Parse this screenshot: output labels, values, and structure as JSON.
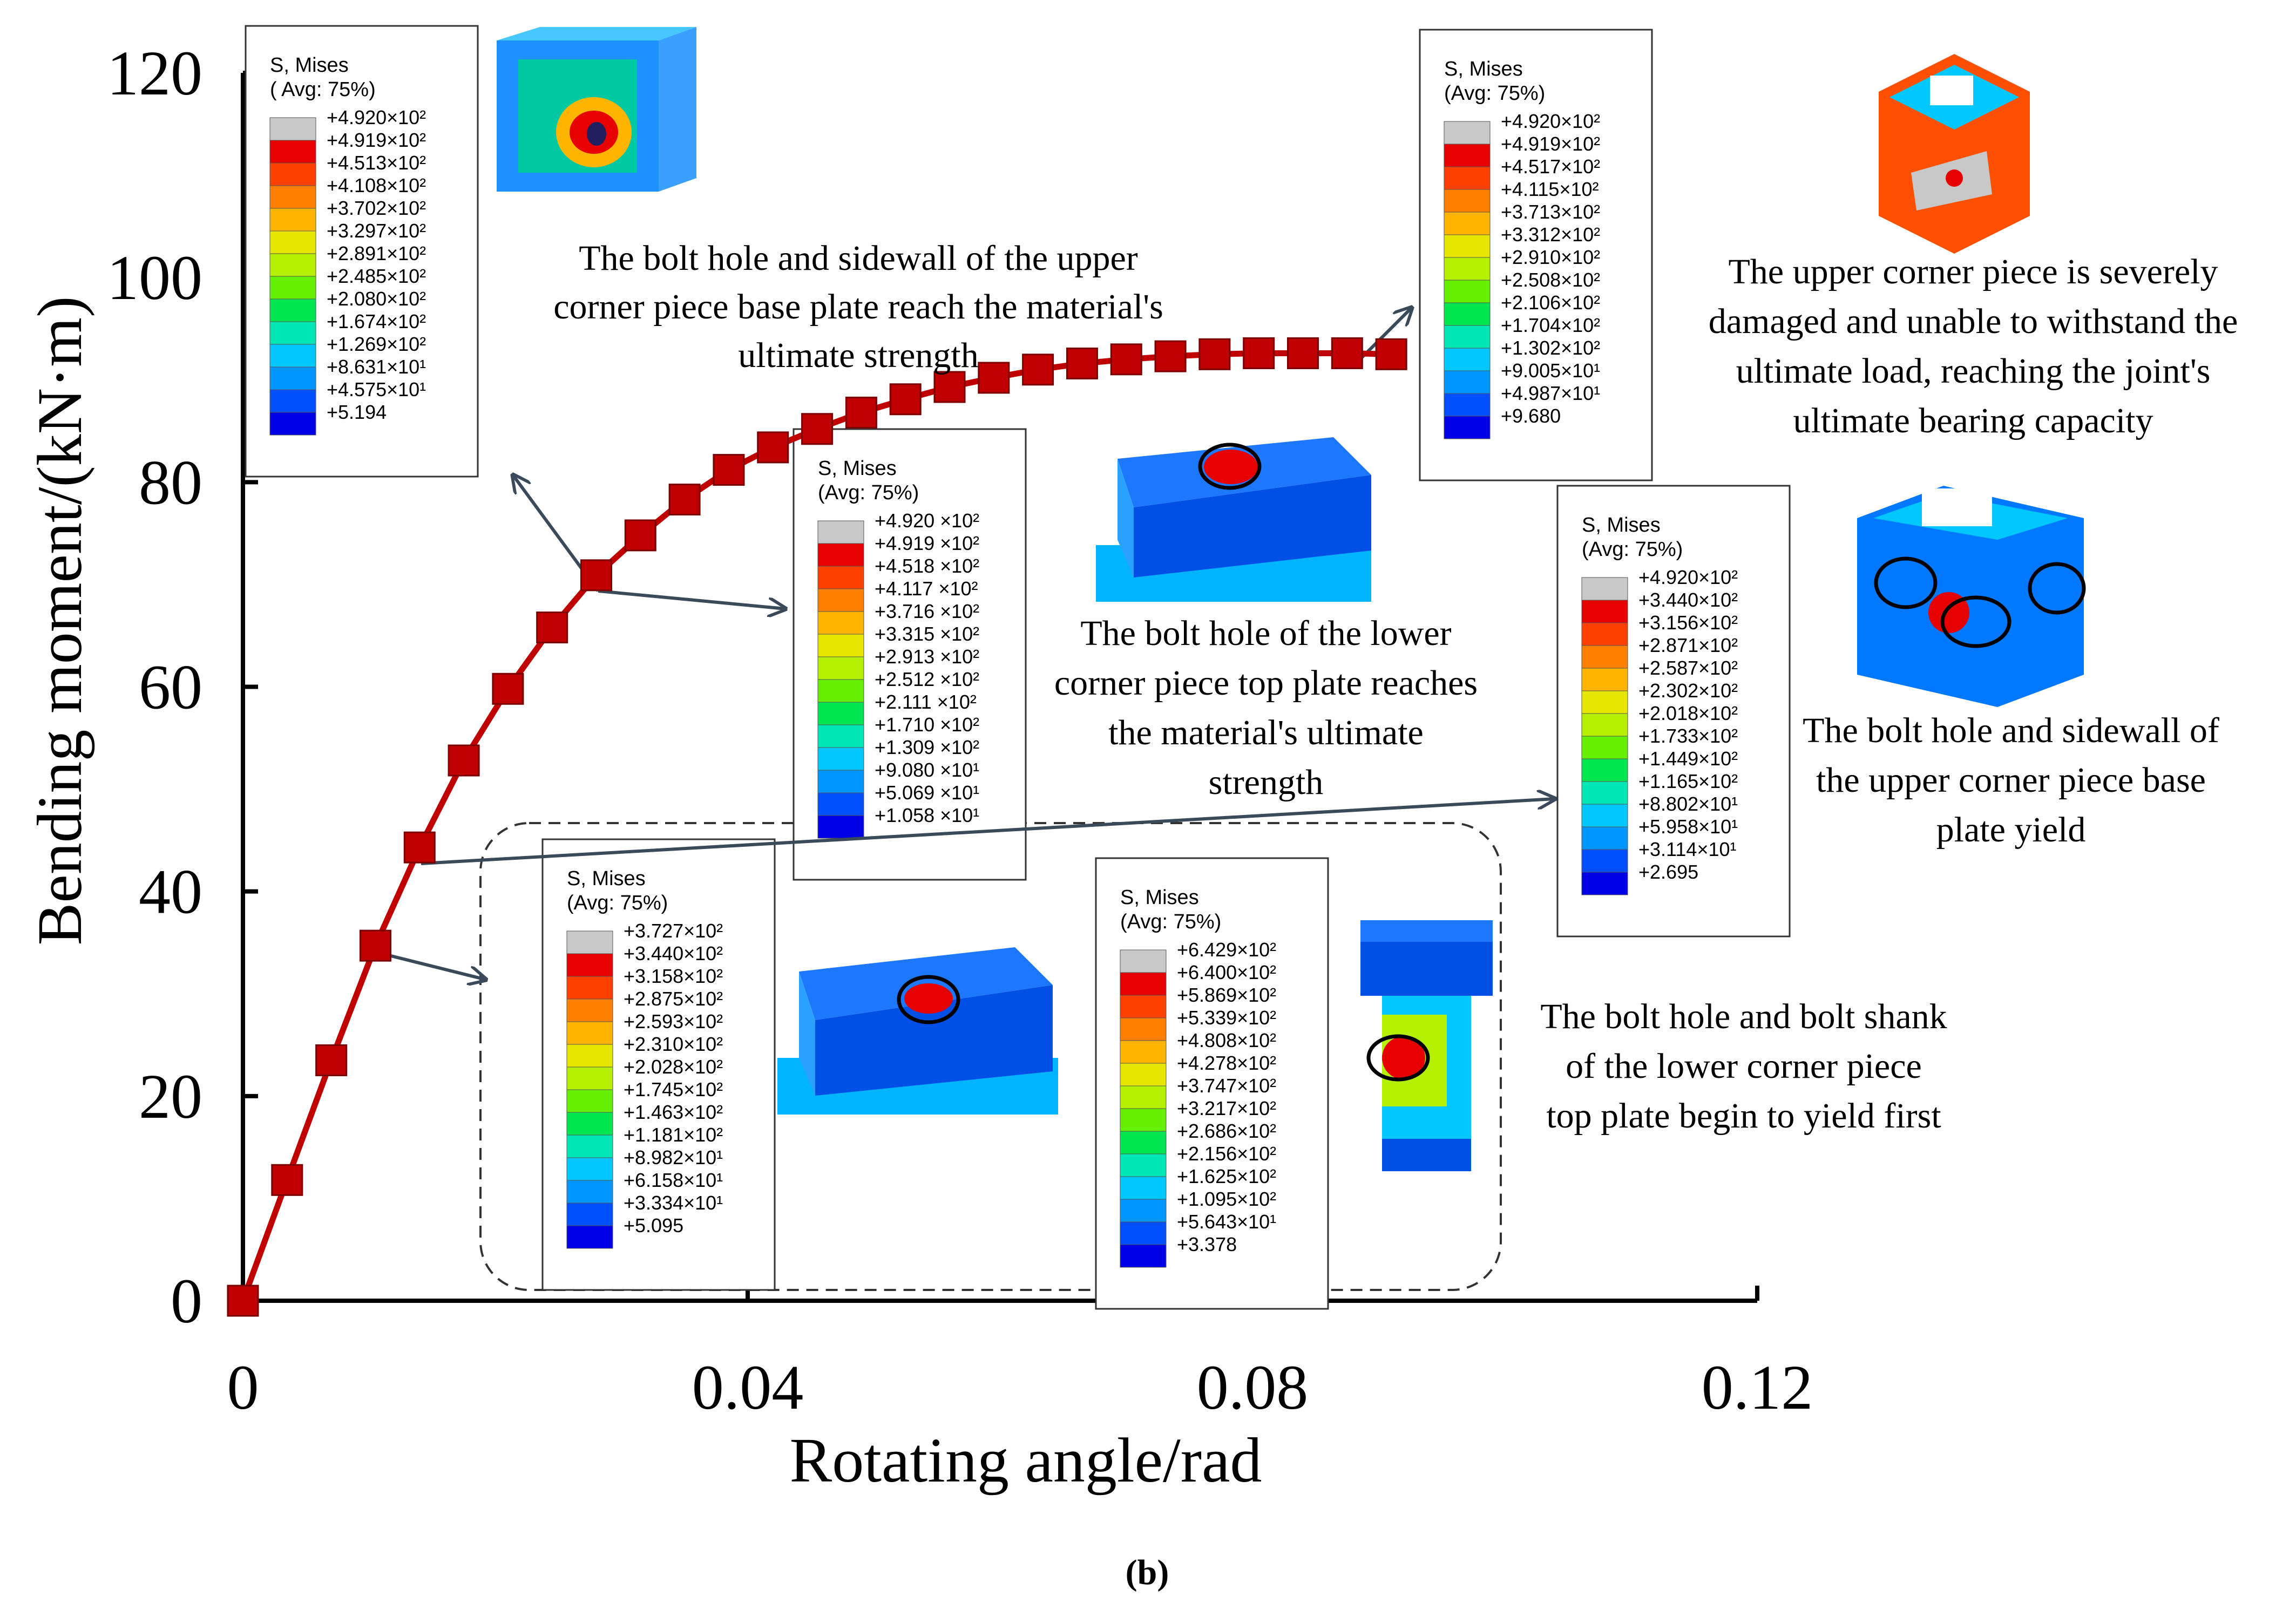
{
  "chart_data": {
    "type": "line",
    "title": "",
    "xlabel": "Rotating angle/rad",
    "ylabel": "Bending moment/(kN·m)",
    "xlim": [
      0,
      0.12
    ],
    "ylim": [
      0,
      120
    ],
    "x_ticks": [
      "0",
      "0.04",
      "0.08",
      "0.12"
    ],
    "y_ticks": [
      "0",
      "20",
      "40",
      "60",
      "80",
      "100",
      "120"
    ],
    "grid": false,
    "series": [
      {
        "name": "Bending moment",
        "color": "#c00000",
        "marker": "square",
        "x": [
          0,
          0.0035,
          0.007,
          0.0105,
          0.014,
          0.0175,
          0.021,
          0.0245,
          0.028,
          0.0315,
          0.035,
          0.0385,
          0.042,
          0.0455,
          0.049,
          0.0525,
          0.056,
          0.0595,
          0.063,
          0.0665,
          0.07,
          0.0735,
          0.077,
          0.0805,
          0.084,
          0.0875,
          0.091
        ],
        "y": [
          0,
          11.8,
          23.5,
          34.7,
          44.3,
          52.8,
          59.8,
          65.8,
          70.9,
          74.8,
          78.3,
          81.2,
          83.4,
          85.2,
          86.8,
          88.1,
          89.3,
          90.2,
          91.0,
          91.6,
          92.0,
          92.3,
          92.5,
          92.6,
          92.6,
          92.6,
          92.5
        ]
      }
    ],
    "annotations": [
      "The bolt hole and sidewall of the upper corner piece base plate reach the material's ultimate strength",
      "The upper corner piece is severely damaged and unable to withstand the ultimate load, reaching the joint's ultimate bearing capacity",
      "The bolt hole of the lower corner piece top plate reaches the material's ultimate strength",
      "The bolt hole and sidewall of the upper corner piece base plate yield",
      "The bolt hole and bolt shank of the lower corner piece top plate begin to yield first"
    ],
    "panel_label": "(b)"
  },
  "annotation_lines": {
    "upper_base_ultimate": [
      "The bolt hole and sidewall of the upper",
      "corner piece base plate reach the material's",
      "ultimate strength"
    ],
    "upper_damaged": [
      "The upper corner piece is severely",
      "damaged and unable to withstand the",
      "ultimate load, reaching the joint's",
      "ultimate bearing capacity"
    ],
    "lower_top_ultimate": [
      "The bolt hole of the lower",
      "corner piece top plate reaches",
      "the material's ultimate",
      "strength"
    ],
    "upper_base_yield": [
      "The bolt hole and sidewall of",
      "the upper corner piece base",
      "plate yield"
    ],
    "lower_first_yield": [
      "The bolt hole and bolt shank",
      "of the lower corner piece",
      "top plate begin to yield first"
    ]
  },
  "legends": [
    {
      "title": "S, Mises",
      "avg": "( Avg: 75%)",
      "values": [
        "+4.920×10²",
        "+4.919×10²",
        "+4.513×10²",
        "+4.108×10²",
        "+3.702×10²",
        "+3.297×10²",
        "+2.891×10²",
        "+2.485×10²",
        "+2.080×10²",
        "+1.674×10²",
        "+1.269×10²",
        "+8.631×10¹",
        "+4.575×10¹",
        "+5.194"
      ]
    },
    {
      "title": "S, Mises",
      "avg": "(Avg: 75%)",
      "values": [
        "+4.920×10²",
        "+4.919×10²",
        "+4.517×10²",
        "+4.115×10²",
        "+3.713×10²",
        "+3.312×10²",
        "+2.910×10²",
        "+2.508×10²",
        "+2.106×10²",
        "+1.704×10²",
        "+1.302×10²",
        "+9.005×10¹",
        "+4.987×10¹",
        "+9.680"
      ]
    },
    {
      "title": "S, Mises",
      "avg": "(Avg: 75%)",
      "values": [
        "+4.920 ×10²",
        "+4.919 ×10²",
        "+4.518 ×10²",
        "+4.117 ×10²",
        "+3.716 ×10²",
        "+3.315 ×10²",
        "+2.913 ×10²",
        "+2.512 ×10²",
        "+2.111 ×10²",
        "+1.710 ×10²",
        "+1.309 ×10²",
        "+9.080 ×10¹",
        "+5.069 ×10¹",
        "+1.058 ×10¹"
      ]
    },
    {
      "title": "S, Mises",
      "avg": "(Avg: 75%)",
      "values": [
        "+4.920×10²",
        "+3.440×10²",
        "+3.156×10²",
        "+2.871×10²",
        "+2.587×10²",
        "+2.302×10²",
        "+2.018×10²",
        "+1.733×10²",
        "+1.449×10²",
        "+1.165×10²",
        "+8.802×10¹",
        "+5.958×10¹",
        "+3.114×10¹",
        "+2.695"
      ]
    },
    {
      "title": "S, Mises",
      "avg": "(Avg: 75%)",
      "values": [
        "+3.727×10²",
        "+3.440×10²",
        "+3.158×10²",
        "+2.875×10²",
        "+2.593×10²",
        "+2.310×10²",
        "+2.028×10²",
        "+1.745×10²",
        "+1.463×10²",
        "+1.181×10²",
        "+8.982×10¹",
        "+6.158×10¹",
        "+3.334×10¹",
        "+5.095"
      ]
    },
    {
      "title": "S, Mises",
      "avg": "(Avg: 75%)",
      "values": [
        "+6.429×10²",
        "+6.400×10²",
        "+5.869×10²",
        "+5.339×10²",
        "+4.808×10²",
        "+4.278×10²",
        "+3.747×10²",
        "+3.217×10²",
        "+2.686×10²",
        "+2.156×10²",
        "+1.625×10²",
        "+1.095×10²",
        "+5.643×10¹",
        "+3.378"
      ]
    }
  ],
  "contour_colors": [
    "#c8c8c8",
    "#e60000",
    "#ff4000",
    "#ff8000",
    "#ffb400",
    "#e6e600",
    "#b4f000",
    "#64f000",
    "#00e650",
    "#00e6b4",
    "#00c8ff",
    "#0096ff",
    "#0050ff",
    "#0000e6"
  ]
}
